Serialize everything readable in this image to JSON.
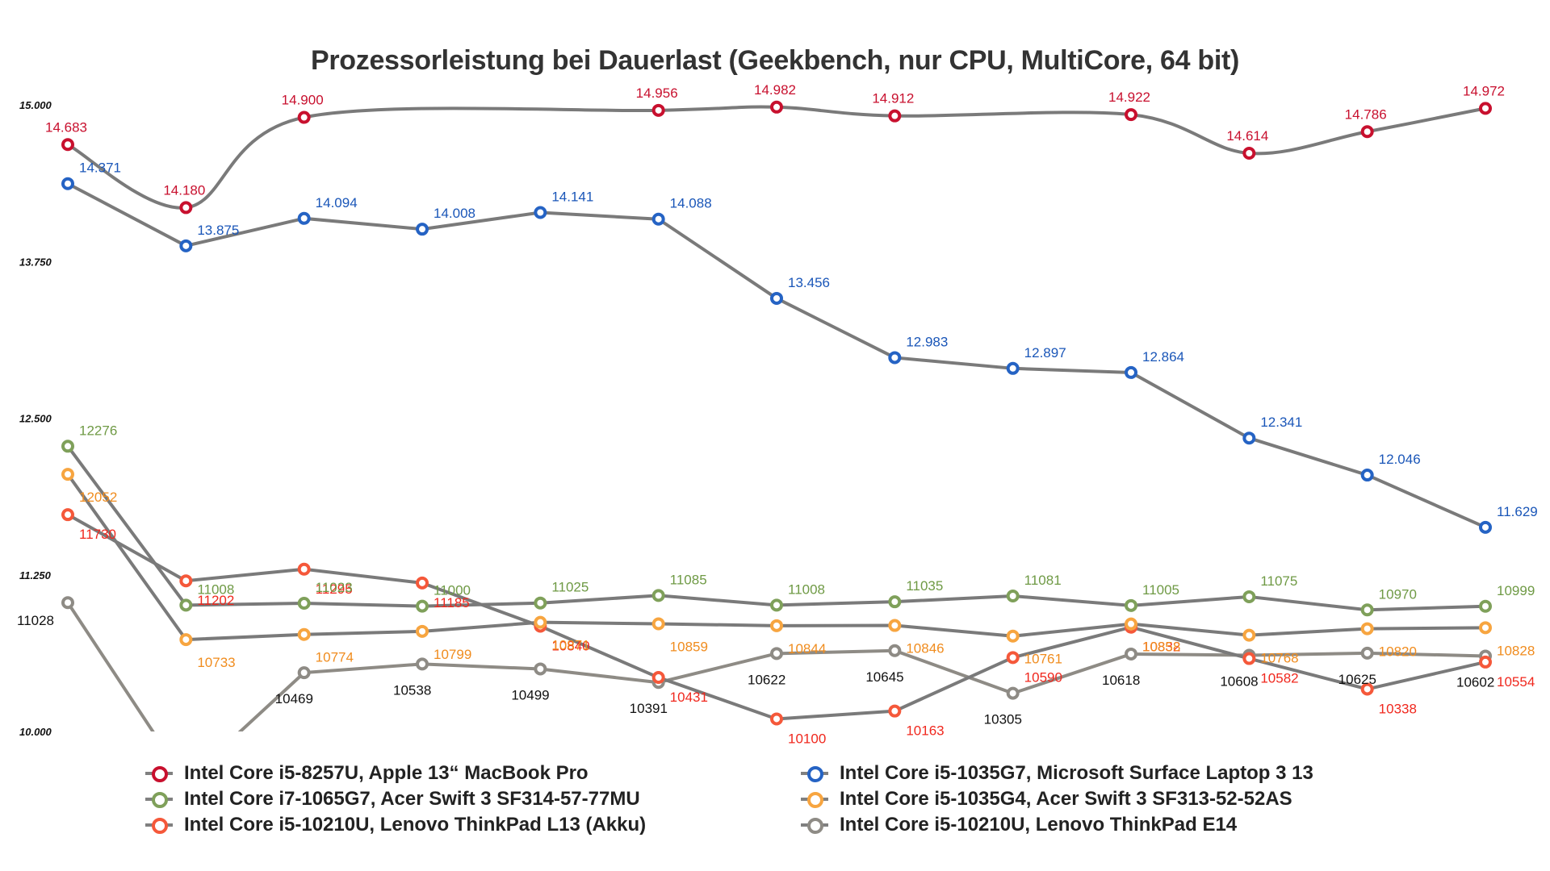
{
  "chart_data": {
    "type": "line",
    "title": "Prozessorleistung bei Dauerlast (Geekbench, nur CPU, MultiCore, 64 bit)",
    "xlabel": "",
    "ylabel": "",
    "x": [
      1,
      2,
      3,
      4,
      5,
      6,
      7,
      8,
      9,
      10,
      11,
      12,
      13
    ],
    "ylim": [
      10000,
      15000
    ],
    "yticks": [
      10000,
      11250,
      12500,
      13750,
      15000
    ],
    "ytick_labels": [
      "10.000",
      "11.250",
      "12.500",
      "13.750",
      "15.000"
    ],
    "grid": false,
    "legend_position": "bottom",
    "line_color": "#7a7a7a",
    "series": [
      {
        "name": "Intel Core i5-8257U, Apple 13“ MacBook Pro",
        "color": "#c8102e",
        "label_color": "#c8102e",
        "smooth": true,
        "values": [
          14683,
          14180,
          14900,
          null,
          null,
          14956,
          14982,
          14912,
          null,
          14922,
          14614,
          14786,
          14972
        ],
        "labels": [
          "14.683",
          "14.180",
          "14.900",
          null,
          null,
          "14.956",
          "14.982",
          "14.912",
          null,
          "14.922",
          "14.614",
          "14.786",
          "14.972"
        ]
      },
      {
        "name": "Intel Core i5-1035G7, Microsoft Surface Laptop 3 13",
        "color": "#2563c4",
        "label_color": "#1a56b8",
        "smooth": false,
        "values": [
          14371,
          13875,
          14094,
          14008,
          14141,
          14088,
          13456,
          12983,
          12897,
          12864,
          12341,
          12046,
          11629
        ],
        "labels": [
          "14.371",
          "13.875",
          "14.094",
          "14.008",
          "14.141",
          "14.088",
          "13.456",
          "12.983",
          "12.897",
          "12.864",
          "12.341",
          "12.046",
          "11.629"
        ]
      },
      {
        "name": "Intel Core i7-1065G7, Acer Swift 3 SF314-57-77MU",
        "color": "#7fa05a",
        "label_color": "#6f9a45",
        "smooth": false,
        "values": [
          12276,
          11008,
          11023,
          11000,
          11025,
          11085,
          11008,
          11035,
          11081,
          11005,
          11075,
          10970,
          10999
        ],
        "labels": [
          "12276",
          "11008",
          "11023",
          "11000",
          "11025",
          "11085",
          "11008",
          "11035",
          "11081",
          "11005",
          "11075",
          "10970",
          "10999"
        ]
      },
      {
        "name": "Intel Core i5-1035G4, Acer Swift 3 SF313-52-52AS",
        "color": "#f7a540",
        "label_color": "#f08c1e",
        "smooth": false,
        "values": [
          12052,
          10733,
          10774,
          10799,
          10871,
          10859,
          10844,
          10846,
          10761,
          10858,
          10768,
          10820,
          10828
        ],
        "labels": [
          "12052",
          "10733",
          "10774",
          "10799",
          "10871",
          "10859",
          "10844",
          "10846",
          "10761",
          "10858",
          "10768",
          "10820",
          "10828"
        ]
      },
      {
        "name": "Intel Core i5-10210U, Lenovo ThinkPad L13 (Akku)",
        "color": "#f5583a",
        "label_color": "#f0281e",
        "smooth": false,
        "values": [
          11730,
          11202,
          11295,
          11185,
          10840,
          10431,
          10100,
          10163,
          10590,
          10832,
          10582,
          10338,
          10554
        ],
        "labels": [
          "11730",
          "11202",
          "11295",
          "11185",
          "10840",
          "10431",
          "10100",
          "10163",
          "10590",
          "10832",
          "10582",
          "10338",
          "10554"
        ]
      },
      {
        "name": "Intel Core i5-10210U, Lenovo ThinkPad E14",
        "color": "#8e8b85",
        "label_color": "#111111",
        "smooth": false,
        "values": [
          11028,
          null,
          10469,
          10538,
          10499,
          10391,
          10622,
          10645,
          10305,
          10618,
          10608,
          10625,
          10602
        ],
        "labels": [
          "11028",
          null,
          "10469",
          "10538",
          "10499",
          "10391",
          "10622",
          "10645",
          "10305",
          "10618",
          "10608",
          "10625",
          "10602"
        ],
        "note": "second point lies below the visible axis range (clipped)"
      }
    ]
  },
  "legend": {
    "left": [
      {
        "label": "Intel Core i5-8257U, Apple 13“ MacBook Pro",
        "color": "#c8102e"
      },
      {
        "label": "Intel Core i7-1065G7, Acer Swift 3 SF314-57-77MU",
        "color": "#7fa05a"
      },
      {
        "label": "Intel Core i5-10210U, Lenovo ThinkPad L13 (Akku)",
        "color": "#f5583a"
      }
    ],
    "right": [
      {
        "label": "Intel Core i5-1035G7, Microsoft Surface Laptop 3 13",
        "color": "#2563c4"
      },
      {
        "label": "Intel Core i5-1035G4, Acer Swift 3 SF313-52-52AS",
        "color": "#f7a540"
      },
      {
        "label": "Intel Core i5-10210U, Lenovo ThinkPad E14",
        "color": "#8e8b85"
      }
    ]
  }
}
